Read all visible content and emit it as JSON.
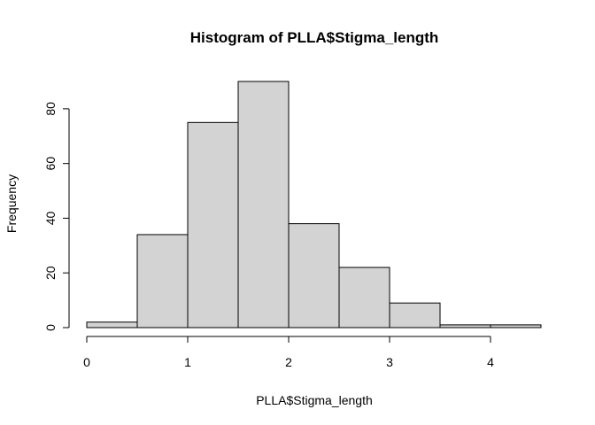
{
  "chart_data": {
    "type": "bar",
    "title": "Histogram of PLLA$Stigma_length",
    "xlabel": "PLLA$Stigma_length",
    "ylabel": "Frequency",
    "bins": [
      {
        "start": 0.0,
        "end": 0.5,
        "count": 2
      },
      {
        "start": 0.5,
        "end": 1.0,
        "count": 34
      },
      {
        "start": 1.0,
        "end": 1.5,
        "count": 75
      },
      {
        "start": 1.5,
        "end": 2.0,
        "count": 90
      },
      {
        "start": 2.0,
        "end": 2.5,
        "count": 38
      },
      {
        "start": 2.5,
        "end": 3.0,
        "count": 22
      },
      {
        "start": 3.0,
        "end": 3.5,
        "count": 9
      },
      {
        "start": 3.5,
        "end": 4.0,
        "count": 1
      },
      {
        "start": 4.0,
        "end": 4.5,
        "count": 1
      }
    ],
    "x_ticks": [
      "0",
      "1",
      "2",
      "3",
      "4"
    ],
    "y_ticks": [
      "0",
      "20",
      "40",
      "60",
      "80"
    ],
    "xlim": [
      0,
      4.5
    ],
    "ylim": [
      0,
      90
    ],
    "grid": false,
    "bar_fill": "#d3d3d3",
    "bar_stroke": "#000000"
  }
}
